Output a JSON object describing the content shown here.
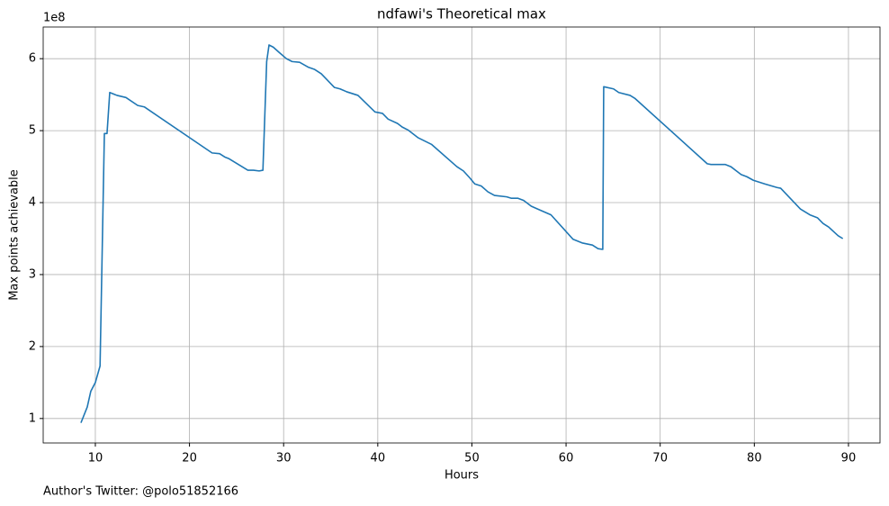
{
  "chart_data": {
    "type": "line",
    "title": "ndfawi's Theoretical max",
    "xlabel": "Hours",
    "ylabel": "Max points achievable",
    "offset_text": "1e8",
    "footer": "Author's Twitter: @polo51852166",
    "xlim": [
      4.46,
      93.35
    ],
    "ylim": [
      0.66,
      6.44
    ],
    "xticks": [
      10,
      20,
      30,
      40,
      50,
      60,
      70,
      80,
      90
    ],
    "yticks": [
      1,
      2,
      3,
      4,
      5,
      6
    ],
    "grid": true,
    "x": [
      8.47,
      9.14,
      9.52,
      10.0,
      10.5,
      10.96,
      11.24,
      11.53,
      12.3,
      13.25,
      14.5,
      15.2,
      22.4,
      23.2,
      23.8,
      24.2,
      26.2,
      26.8,
      27.4,
      27.8,
      28.2,
      28.45,
      28.9,
      29.5,
      30.3,
      30.9,
      31.7,
      32.65,
      33.3,
      34.0,
      35.4,
      36.0,
      36.7,
      37.9,
      39.7,
      40.5,
      41.1,
      42.1,
      42.6,
      43.2,
      44.3,
      45.7,
      48.4,
      49.1,
      49.8,
      50.3,
      51.0,
      51.7,
      52.4,
      53.7,
      54.2,
      54.9,
      55.5,
      56.3,
      57.0,
      58.4,
      60.75,
      61.7,
      62.8,
      63.4,
      63.9,
      64.0,
      65.05,
      65.6,
      66.8,
      67.3,
      75.0,
      75.4,
      76.9,
      77.5,
      78.1,
      78.6,
      79.2,
      79.9,
      81.1,
      82.4,
      82.8,
      84.9,
      85.9,
      86.7,
      87.3,
      87.9,
      88.9,
      89.4
    ],
    "series": [
      {
        "color": "#1f77b4",
        "values": [
          0.94,
          1.16,
          1.38,
          1.5,
          1.73,
          4.96,
          4.96,
          5.53,
          5.49,
          5.46,
          5.35,
          5.33,
          4.69,
          4.68,
          4.63,
          4.61,
          4.45,
          4.45,
          4.44,
          4.45,
          5.96,
          6.19,
          6.16,
          6.09,
          6.0,
          5.96,
          5.95,
          5.88,
          5.85,
          5.79,
          5.6,
          5.58,
          5.54,
          5.49,
          5.26,
          5.24,
          5.16,
          5.1,
          5.05,
          5.01,
          4.9,
          4.81,
          4.5,
          4.44,
          4.34,
          4.26,
          4.23,
          4.15,
          4.1,
          4.08,
          4.06,
          4.06,
          4.03,
          3.95,
          3.91,
          3.83,
          3.49,
          3.44,
          3.41,
          3.36,
          3.35,
          5.61,
          5.58,
          5.53,
          5.49,
          5.45,
          4.54,
          4.53,
          4.53,
          4.5,
          4.44,
          4.39,
          4.36,
          4.31,
          4.26,
          4.21,
          4.2,
          3.91,
          3.83,
          3.79,
          3.71,
          3.66,
          3.54,
          3.5
        ]
      }
    ]
  }
}
